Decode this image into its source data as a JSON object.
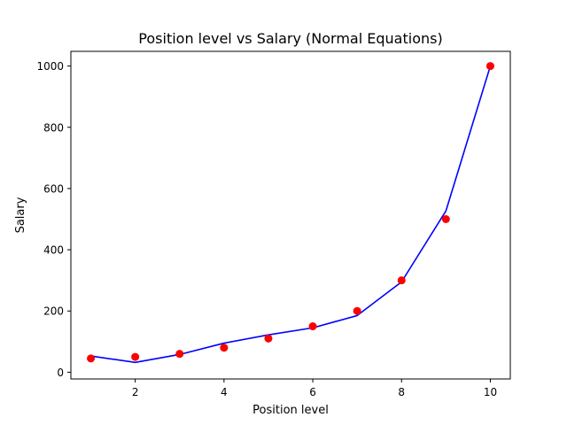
{
  "chart_data": {
    "type": "scatter",
    "title": "Position level vs Salary (Normal Equations)",
    "xlabel": "Position level",
    "ylabel": "Salary",
    "xlim": [
      0.55,
      10.45
    ],
    "ylim": [
      -22,
      1048
    ],
    "x_ticks": [
      2,
      4,
      6,
      8,
      10
    ],
    "y_ticks": [
      0,
      200,
      400,
      600,
      800,
      1000
    ],
    "grid": false,
    "series": [
      {
        "kind": "scatter",
        "color": "#ff0000",
        "x": [
          1,
          2,
          3,
          4,
          5,
          6,
          7,
          8,
          9,
          10
        ],
        "y": [
          45,
          50,
          60,
          80,
          110,
          150,
          200,
          300,
          500,
          1000
        ]
      },
      {
        "kind": "line",
        "color": "#0000ff",
        "x": [
          1,
          2,
          3,
          4,
          5,
          6,
          7,
          8,
          9,
          10
        ],
        "y": [
          53,
          32,
          58,
          95,
          122,
          145,
          185,
          295,
          527,
          1000
        ]
      }
    ]
  }
}
